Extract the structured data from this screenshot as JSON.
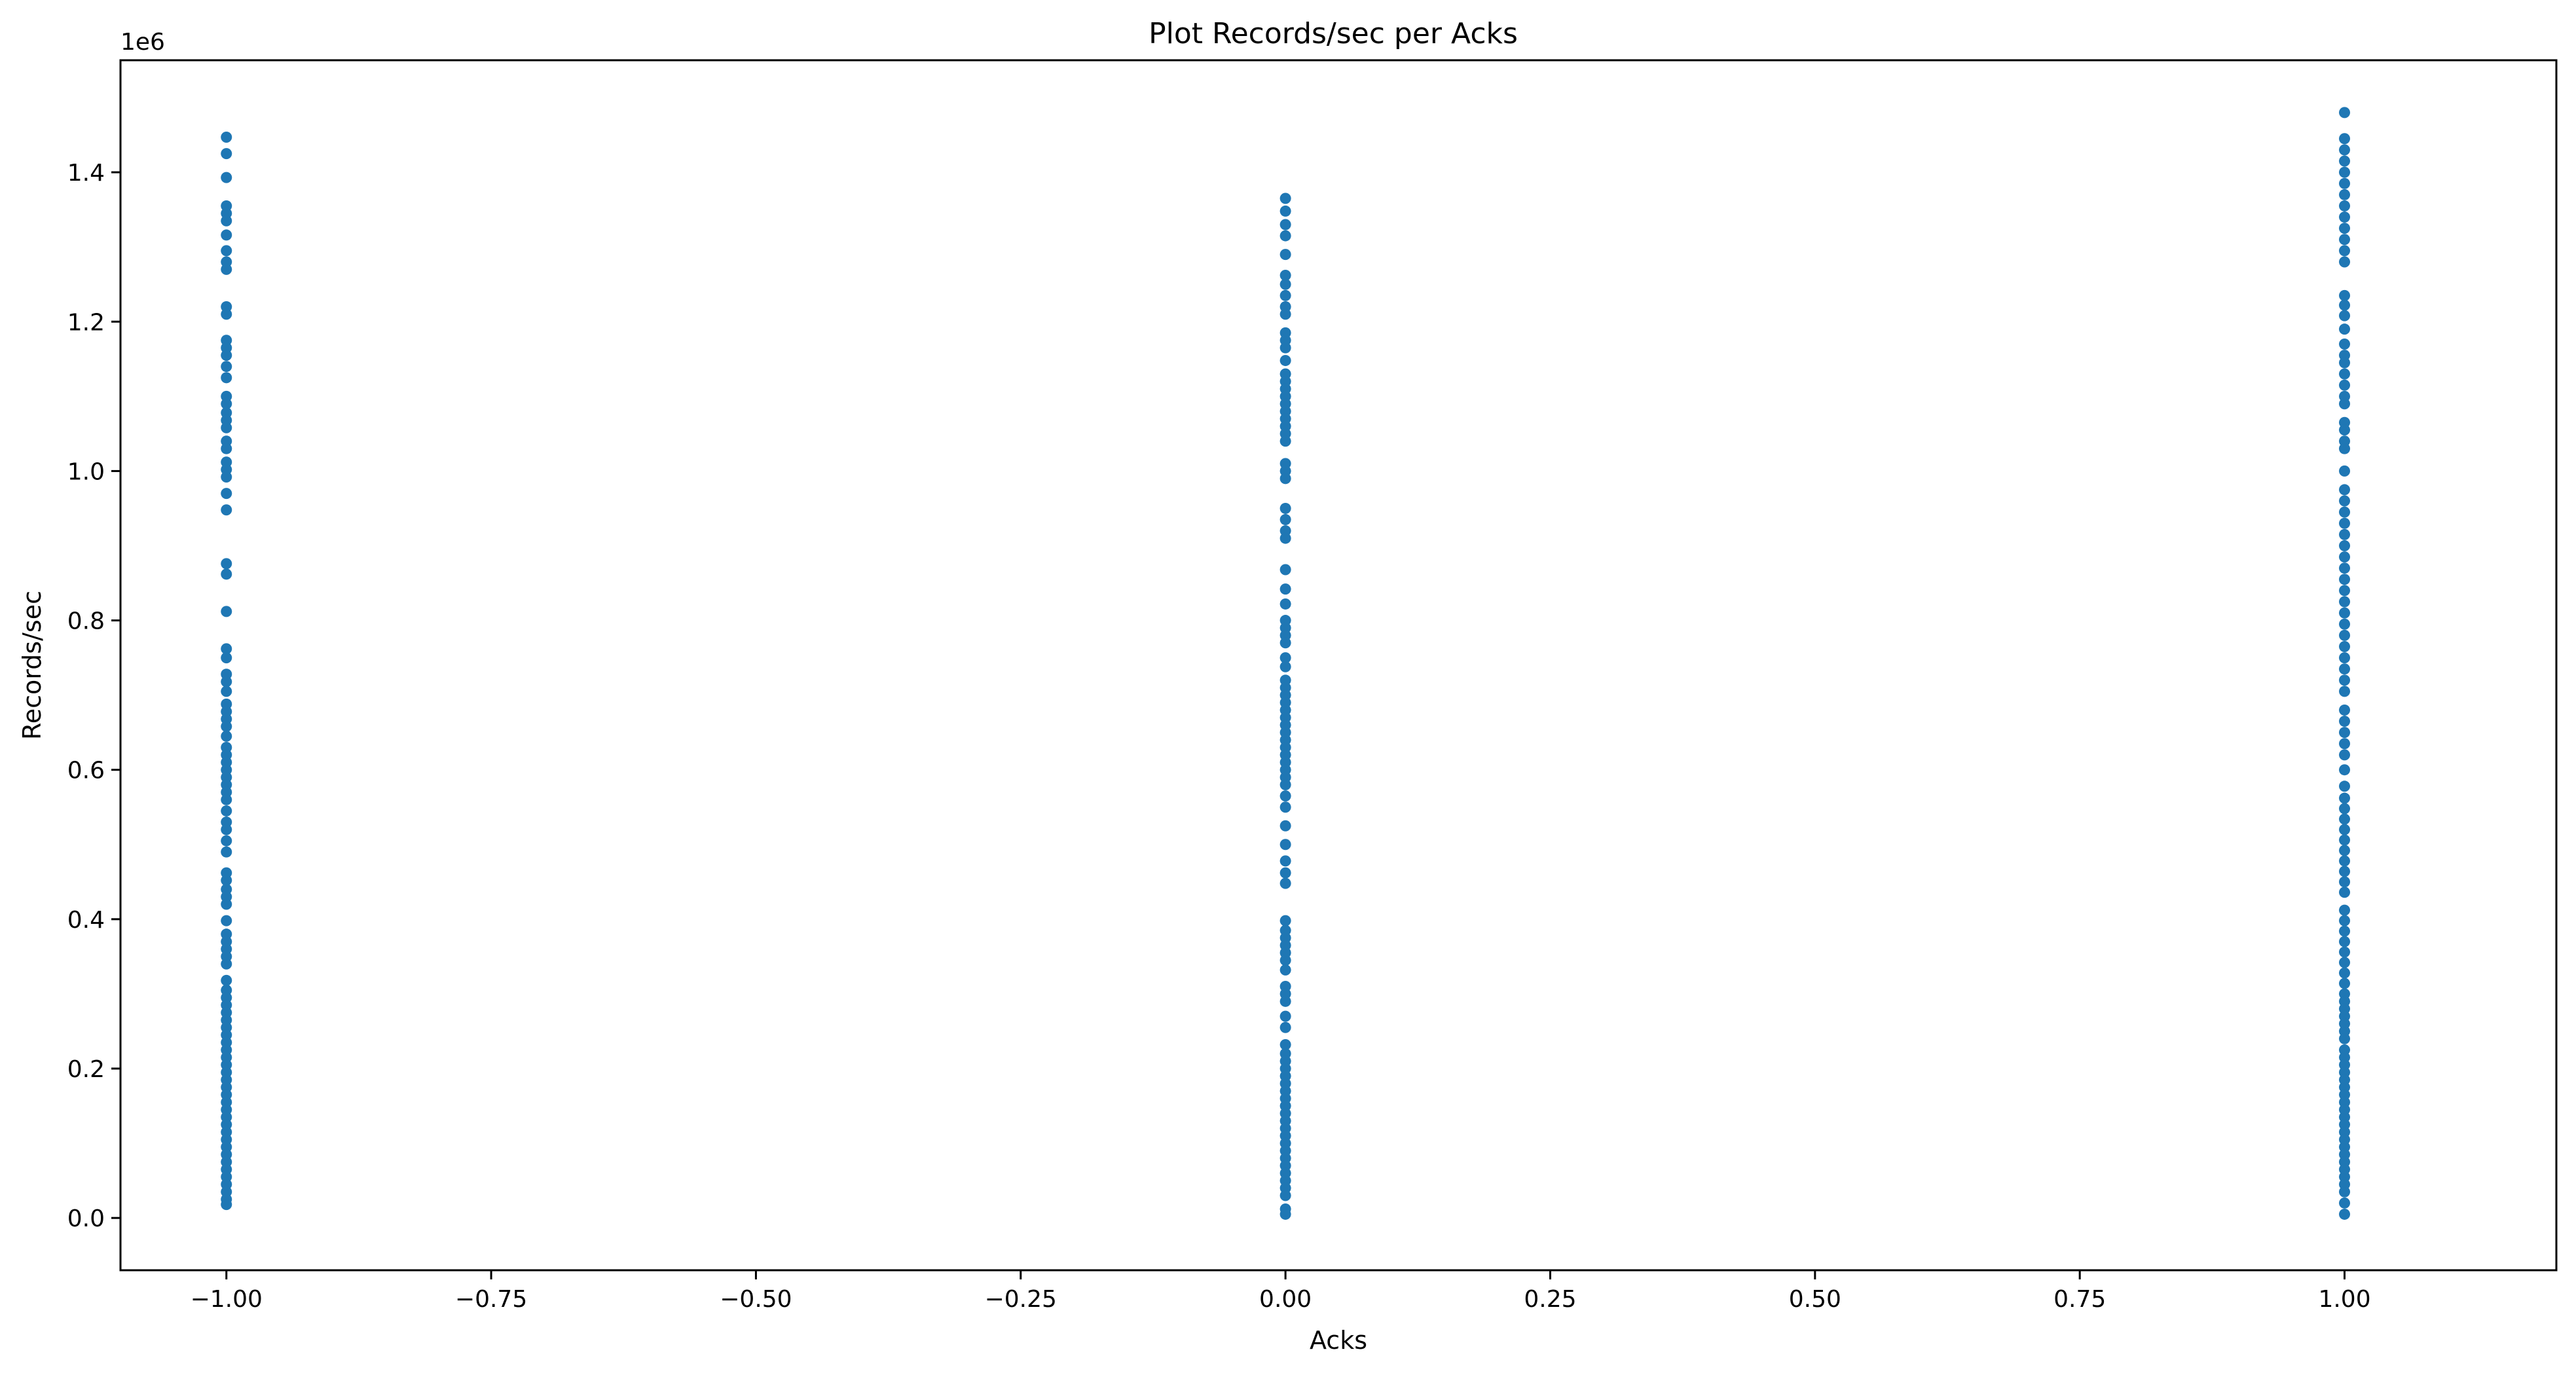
{
  "chart_data": {
    "type": "scatter",
    "title": "Plot Records/sec per Acks",
    "xlabel": "Acks",
    "ylabel": "Records/sec",
    "y_offset_label": "1e6",
    "xlim": [
      -1.1,
      1.2
    ],
    "ylim": [
      -0.07,
      1.55
    ],
    "x_ticks": [
      -1.0,
      -0.75,
      -0.5,
      -0.25,
      0.0,
      0.25,
      0.5,
      0.75,
      1.0
    ],
    "x_tick_labels": [
      "−1.00",
      "−0.75",
      "−0.50",
      "−0.25",
      "0.00",
      "0.25",
      "0.50",
      "0.75",
      "1.00"
    ],
    "y_ticks": [
      0.0,
      0.2,
      0.4,
      0.6,
      0.8,
      1.0,
      1.2,
      1.4
    ],
    "y_tick_labels": [
      "0.0",
      "0.2",
      "0.4",
      "0.6",
      "0.8",
      "1.0",
      "1.2",
      "1.4"
    ],
    "grid": false,
    "marker_color": "#1f77b4",
    "series": [
      {
        "x": -1,
        "values": [
          1.447,
          1.425,
          1.393,
          1.355,
          1.345,
          1.335,
          1.316,
          1.295,
          1.28,
          1.27,
          1.22,
          1.21,
          1.175,
          1.165,
          1.155,
          1.14,
          1.125,
          1.1,
          1.09,
          1.078,
          1.068,
          1.058,
          1.04,
          1.03,
          1.012,
          1.002,
          0.992,
          0.97,
          0.948,
          0.876,
          0.862,
          0.812,
          0.762,
          0.75,
          0.728,
          0.718,
          0.705,
          0.688,
          0.678,
          0.668,
          0.658,
          0.645,
          0.63,
          0.62,
          0.61,
          0.6,
          0.59,
          0.58,
          0.57,
          0.56,
          0.545,
          0.53,
          0.52,
          0.505,
          0.49,
          0.462,
          0.452,
          0.44,
          0.43,
          0.42,
          0.398,
          0.38,
          0.37,
          0.36,
          0.35,
          0.34,
          0.318,
          0.305,
          0.295,
          0.285,
          0.275,
          0.265,
          0.255,
          0.245,
          0.235,
          0.225,
          0.215,
          0.205,
          0.195,
          0.185,
          0.175,
          0.165,
          0.155,
          0.145,
          0.135,
          0.125,
          0.115,
          0.105,
          0.095,
          0.085,
          0.075,
          0.065,
          0.055,
          0.045,
          0.035,
          0.025,
          0.018
        ]
      },
      {
        "x": 0,
        "values": [
          1.365,
          1.348,
          1.33,
          1.315,
          1.29,
          1.262,
          1.25,
          1.235,
          1.22,
          1.21,
          1.185,
          1.175,
          1.165,
          1.148,
          1.13,
          1.12,
          1.11,
          1.1,
          1.09,
          1.08,
          1.07,
          1.06,
          1.05,
          1.04,
          1.01,
          1.0,
          0.99,
          0.95,
          0.935,
          0.92,
          0.91,
          0.868,
          0.842,
          0.822,
          0.8,
          0.79,
          0.78,
          0.77,
          0.75,
          0.738,
          0.72,
          0.71,
          0.7,
          0.69,
          0.68,
          0.67,
          0.66,
          0.65,
          0.64,
          0.63,
          0.62,
          0.61,
          0.6,
          0.59,
          0.58,
          0.565,
          0.55,
          0.525,
          0.5,
          0.478,
          0.462,
          0.448,
          0.398,
          0.385,
          0.375,
          0.365,
          0.355,
          0.345,
          0.332,
          0.31,
          0.3,
          0.29,
          0.27,
          0.255,
          0.232,
          0.22,
          0.21,
          0.2,
          0.19,
          0.18,
          0.17,
          0.16,
          0.15,
          0.14,
          0.13,
          0.12,
          0.11,
          0.1,
          0.09,
          0.08,
          0.07,
          0.06,
          0.05,
          0.04,
          0.03,
          0.012,
          0.005
        ]
      },
      {
        "x": 1,
        "values": [
          1.48,
          1.445,
          1.43,
          1.415,
          1.4,
          1.385,
          1.37,
          1.355,
          1.34,
          1.325,
          1.31,
          1.295,
          1.28,
          1.235,
          1.222,
          1.208,
          1.19,
          1.17,
          1.155,
          1.145,
          1.13,
          1.115,
          1.1,
          1.09,
          1.065,
          1.055,
          1.04,
          1.03,
          1.0,
          0.975,
          0.96,
          0.945,
          0.93,
          0.915,
          0.9,
          0.885,
          0.87,
          0.855,
          0.84,
          0.825,
          0.81,
          0.795,
          0.78,
          0.765,
          0.75,
          0.735,
          0.72,
          0.705,
          0.68,
          0.665,
          0.65,
          0.635,
          0.62,
          0.6,
          0.578,
          0.562,
          0.548,
          0.534,
          0.52,
          0.506,
          0.492,
          0.478,
          0.464,
          0.45,
          0.436,
          0.412,
          0.398,
          0.384,
          0.37,
          0.356,
          0.342,
          0.328,
          0.314,
          0.3,
          0.29,
          0.28,
          0.27,
          0.26,
          0.25,
          0.24,
          0.225,
          0.215,
          0.205,
          0.195,
          0.185,
          0.175,
          0.165,
          0.155,
          0.145,
          0.135,
          0.125,
          0.115,
          0.105,
          0.095,
          0.085,
          0.075,
          0.065,
          0.055,
          0.045,
          0.035,
          0.02,
          0.005
        ]
      }
    ]
  }
}
